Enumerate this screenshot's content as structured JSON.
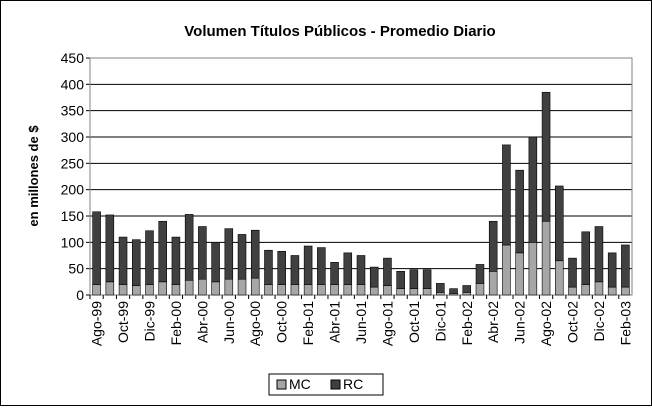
{
  "chart_data": {
    "type": "stacked_bar",
    "title": "Volumen Títulos Públicos - Promedio Diario",
    "y_label": "en millones de $",
    "categories": [
      "Ago-99",
      null,
      "Oct-99",
      null,
      "Dic-99",
      null,
      "Feb-00",
      null,
      "Abr-00",
      null,
      "Jun-00",
      null,
      "Ago-00",
      null,
      "Oct-00",
      null,
      "Feb-01",
      null,
      "Abr-01",
      null,
      "Jun-01",
      null,
      "Ago-01",
      null,
      "Oct-01",
      null,
      "Dic-01",
      null,
      "Feb-02",
      null,
      "Abr-02",
      null,
      "Jun-02",
      null,
      "Ago-02",
      null,
      "Oct-02",
      null,
      "Dic-02",
      null,
      "Feb-03"
    ],
    "series": [
      {
        "name": "MC",
        "color": "#a6a6a6",
        "values": [
          20,
          25,
          20,
          18,
          20,
          25,
          20,
          28,
          30,
          25,
          30,
          30,
          32,
          20,
          20,
          20,
          20,
          20,
          20,
          20,
          20,
          15,
          18,
          12,
          12,
          12,
          5,
          3,
          5,
          22,
          45,
          95,
          80,
          100,
          140,
          65,
          15,
          20,
          25,
          15,
          15
        ]
      },
      {
        "name": "RC",
        "color": "#404040",
        "values": [
          138,
          127,
          90,
          87,
          102,
          115,
          90,
          125,
          100,
          75,
          96,
          85,
          91,
          65,
          63,
          55,
          73,
          70,
          42,
          60,
          55,
          38,
          52,
          33,
          36,
          36,
          17,
          9,
          13,
          36,
          95,
          190,
          157,
          200,
          245,
          142,
          55,
          100,
          105,
          65,
          80
        ]
      }
    ],
    "ylim": [
      0,
      450
    ],
    "yticks": [
      0,
      50,
      100,
      150,
      200,
      250,
      300,
      350,
      400,
      450
    ],
    "grid": true,
    "legend": "bottom"
  }
}
